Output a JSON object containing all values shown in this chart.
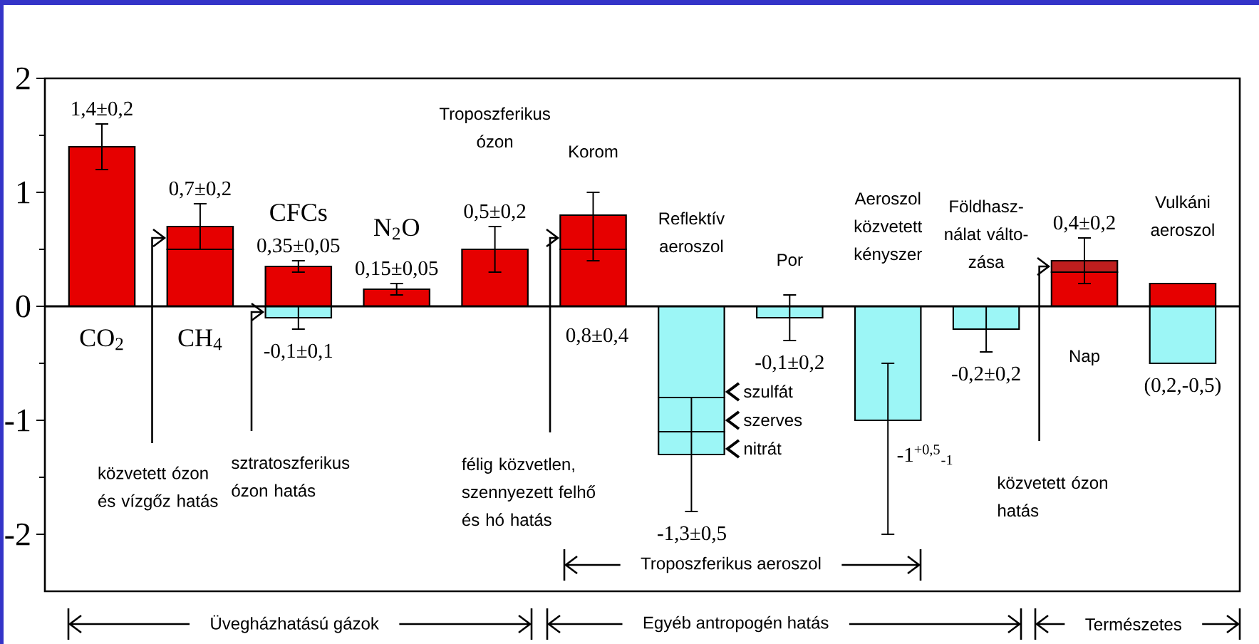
{
  "chart_data": {
    "type": "bar",
    "stacked": true,
    "categories": [
      "CO$_{2}$",
      "CH$_{4}$",
      "CFCs",
      "N$_{2}$O",
      "Troposzferikus ózon",
      "Korom",
      "Reflektív aeroszol",
      "Por",
      "Aeroszol közvetett kényszer",
      "Földhasz-nálat válto-zása",
      "Nap",
      "Vulkáni aeroszol"
    ],
    "series": [
      {
        "color": "#e60000",
        "values": [
          1.4,
          0.5,
          0.35,
          0.15,
          0.5,
          0.5,
          null,
          null,
          null,
          null,
          0.3,
          0.2
        ],
        "errors": [
          0.2,
          null,
          0.05,
          0.05,
          0.2,
          null,
          null,
          null,
          null,
          null,
          null,
          null
        ]
      },
      {
        "colors": [
          "#e60000",
          "#e60000",
          "#e60000",
          "#e60000",
          "#e60000",
          "#e60000",
          "#e60000",
          "#e60000",
          "#e60000",
          "#e60000",
          "#be1e1e",
          "#e60000"
        ],
        "values": [
          null,
          0.2,
          null,
          null,
          null,
          0.3,
          null,
          null,
          null,
          null,
          0.1,
          null
        ],
        "errors": [
          null,
          0.2,
          null,
          null,
          null,
          [
            0.4,
            1.0
          ],
          null,
          null,
          null,
          null,
          0.2,
          null
        ]
      },
      {
        "color": "#9cf6f6",
        "values": [
          null,
          null,
          -0.1,
          null,
          null,
          null,
          -0.8,
          -0.1,
          -1.0,
          -0.2,
          null,
          -0.5
        ],
        "errors": [
          null,
          null,
          0.1,
          null,
          null,
          null,
          null,
          0.2,
          [
            -2,
            -0.5
          ],
          0.2,
          null,
          null
        ]
      },
      {
        "color": "#9cf6f6",
        "values": [
          null,
          null,
          null,
          null,
          null,
          null,
          -0.3,
          null,
          null,
          null,
          null,
          null
        ]
      },
      {
        "color": "#9cf6f6",
        "values": [
          null,
          null,
          null,
          null,
          null,
          null,
          -0.2,
          null,
          null,
          null,
          null,
          null
        ],
        "errors": [
          null,
          null,
          null,
          null,
          null,
          null,
          0.5,
          null,
          null,
          null,
          null,
          null
        ]
      }
    ],
    "ylim": [
      -2.5,
      2
    ],
    "yticks": [
      -2,
      -1,
      0,
      1,
      2
    ],
    "annotations": [
      {
        "text": "1,4±0,2",
        "x": "CO$_{2}$",
        "y": 1.4
      },
      {
        "text": "0,7±0,2",
        "x": "CH$_{4}$",
        "y": 0.7
      },
      {
        "text": "0,35±0,05",
        "x": "CFCs",
        "y": 0.35
      },
      {
        "text": "-0,1±0,1",
        "x": "CFCs",
        "y": -0.1
      },
      {
        "text": "0,15±0,05",
        "x": "N$_{2}$O",
        "y": 0.15
      },
      {
        "text": "0,5±0,2",
        "x": "Troposzferikus ózon",
        "y": 0.5
      },
      "0,8±0,4",
      "-1,3±0,5",
      {
        "text": "-0,1±0,2",
        "x": "Por",
        "y": -0.1
      },
      {
        "text": "-1$^{+0,5}$$_{-1}$",
        "x": "Aeroszol közvetett kényszer",
        "y": -1
      },
      {
        "text": "-0,2±0,2",
        "x": "Földhasz-nálat válto-zása",
        "y": -0.2
      },
      {
        "text": "0,4±0,2",
        "x": "Nap",
        "y": 0.4
      },
      {
        "text": "(0,2,-0,5)",
        "x": "Vulkáni aeroszol",
        "y": -0.5
      },
      "közvetett ózon és vízgőz hatás",
      "sztratoszferikus ózon hatás",
      "félig közvetlen, szennyezett felhő és hó hatás",
      "szulfát",
      "szerves",
      "nitrát",
      "közvetett ózon hatás",
      "Troposzferikus aeroszol",
      "Üvegházhatású gázok",
      "Egyéb antropogén hatás",
      "Természetes"
    ]
  }
}
